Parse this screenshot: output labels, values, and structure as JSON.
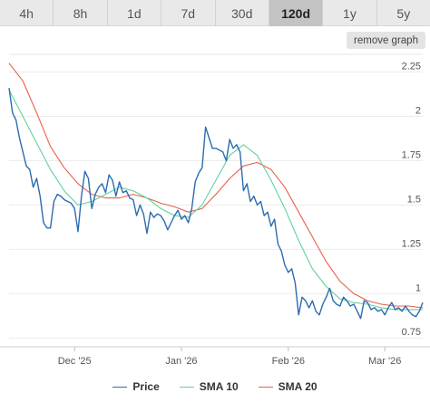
{
  "tabs": [
    {
      "label": "4h",
      "active": false
    },
    {
      "label": "8h",
      "active": false
    },
    {
      "label": "1d",
      "active": false
    },
    {
      "label": "7d",
      "active": false
    },
    {
      "label": "30d",
      "active": false
    },
    {
      "label": "120d",
      "active": true
    },
    {
      "label": "1y",
      "active": false
    },
    {
      "label": "5y",
      "active": false
    }
  ],
  "remove_graph_label": "remove graph",
  "chart_data": {
    "type": "line",
    "title": "",
    "xlabel": "",
    "ylabel": "",
    "ylim": [
      0.7,
      2.35
    ],
    "y_ticks": [
      0.75,
      1,
      1.25,
      1.5,
      1.75,
      2,
      2.25
    ],
    "y_tick_labels": [
      "0.75",
      "1",
      "1.25",
      "1.5",
      "1.75",
      "2",
      "2.25"
    ],
    "x_range": [
      "2025-11-12",
      "2026-03-12"
    ],
    "x_ticks": [
      {
        "date": "2025-12-01",
        "label": "Dec '25"
      },
      {
        "date": "2026-01-01",
        "label": "Jan '26"
      },
      {
        "date": "2026-02-01",
        "label": "Feb '26"
      },
      {
        "date": "2026-03-01",
        "label": "Mar '26"
      }
    ],
    "grid": {
      "horizontal": true,
      "vertical": false
    },
    "legend_position": "bottom",
    "series": [
      {
        "name": "Price",
        "color": "#2b6cb0",
        "points": [
          [
            "2025-11-12",
            2.16
          ],
          [
            "2025-11-13",
            2.02
          ],
          [
            "2025-11-14",
            1.98
          ],
          [
            "2025-11-15",
            1.88
          ],
          [
            "2025-11-16",
            1.8
          ],
          [
            "2025-11-17",
            1.72
          ],
          [
            "2025-11-18",
            1.7
          ],
          [
            "2025-11-19",
            1.6
          ],
          [
            "2025-11-20",
            1.65
          ],
          [
            "2025-11-21",
            1.55
          ],
          [
            "2025-11-22",
            1.4
          ],
          [
            "2025-11-23",
            1.37
          ],
          [
            "2025-11-24",
            1.37
          ],
          [
            "2025-11-25",
            1.52
          ],
          [
            "2025-11-26",
            1.56
          ],
          [
            "2025-11-27",
            1.55
          ],
          [
            "2025-11-28",
            1.53
          ],
          [
            "2025-11-29",
            1.52
          ],
          [
            "2025-11-30",
            1.51
          ],
          [
            "2025-12-01",
            1.48
          ],
          [
            "2025-12-02",
            1.35
          ],
          [
            "2025-12-03",
            1.55
          ],
          [
            "2025-12-04",
            1.69
          ],
          [
            "2025-12-05",
            1.65
          ],
          [
            "2025-12-06",
            1.48
          ],
          [
            "2025-12-07",
            1.56
          ],
          [
            "2025-12-08",
            1.6
          ],
          [
            "2025-12-09",
            1.62
          ],
          [
            "2025-12-10",
            1.57
          ],
          [
            "2025-12-11",
            1.67
          ],
          [
            "2025-12-12",
            1.64
          ],
          [
            "2025-12-13",
            1.55
          ],
          [
            "2025-12-14",
            1.63
          ],
          [
            "2025-12-15",
            1.57
          ],
          [
            "2025-12-16",
            1.58
          ],
          [
            "2025-12-17",
            1.54
          ],
          [
            "2025-12-18",
            1.53
          ],
          [
            "2025-12-19",
            1.44
          ],
          [
            "2025-12-20",
            1.5
          ],
          [
            "2025-12-21",
            1.45
          ],
          [
            "2025-12-22",
            1.34
          ],
          [
            "2025-12-23",
            1.46
          ],
          [
            "2025-12-24",
            1.43
          ],
          [
            "2025-12-25",
            1.45
          ],
          [
            "2025-12-26",
            1.44
          ],
          [
            "2025-12-27",
            1.41
          ],
          [
            "2025-12-28",
            1.36
          ],
          [
            "2025-12-29",
            1.4
          ],
          [
            "2025-12-30",
            1.44
          ],
          [
            "2025-12-31",
            1.47
          ],
          [
            "2026-01-01",
            1.42
          ],
          [
            "2026-01-02",
            1.44
          ],
          [
            "2026-01-03",
            1.4
          ],
          [
            "2026-01-04",
            1.48
          ],
          [
            "2026-01-05",
            1.63
          ],
          [
            "2026-01-06",
            1.68
          ],
          [
            "2026-01-07",
            1.71
          ],
          [
            "2026-01-08",
            1.94
          ],
          [
            "2026-01-09",
            1.88
          ],
          [
            "2026-01-10",
            1.82
          ],
          [
            "2026-01-11",
            1.82
          ],
          [
            "2026-01-12",
            1.81
          ],
          [
            "2026-01-13",
            1.8
          ],
          [
            "2026-01-14",
            1.75
          ],
          [
            "2026-01-15",
            1.87
          ],
          [
            "2026-01-16",
            1.82
          ],
          [
            "2026-01-17",
            1.84
          ],
          [
            "2026-01-18",
            1.8
          ],
          [
            "2026-01-19",
            1.58
          ],
          [
            "2026-01-20",
            1.62
          ],
          [
            "2026-01-21",
            1.52
          ],
          [
            "2026-01-22",
            1.55
          ],
          [
            "2026-01-23",
            1.5
          ],
          [
            "2026-01-24",
            1.52
          ],
          [
            "2026-01-25",
            1.44
          ],
          [
            "2026-01-26",
            1.46
          ],
          [
            "2026-01-27",
            1.38
          ],
          [
            "2026-01-28",
            1.42
          ],
          [
            "2026-01-29",
            1.28
          ],
          [
            "2026-01-30",
            1.24
          ],
          [
            "2026-01-31",
            1.16
          ],
          [
            "2026-02-01",
            1.12
          ],
          [
            "2026-02-02",
            1.14
          ],
          [
            "2026-02-03",
            1.06
          ],
          [
            "2026-02-04",
            0.88
          ],
          [
            "2026-02-05",
            0.98
          ],
          [
            "2026-02-06",
            0.96
          ],
          [
            "2026-02-07",
            0.92
          ],
          [
            "2026-02-08",
            0.96
          ],
          [
            "2026-02-09",
            0.9
          ],
          [
            "2026-02-10",
            0.88
          ],
          [
            "2026-02-11",
            0.94
          ],
          [
            "2026-02-12",
            0.98
          ],
          [
            "2026-02-13",
            1.03
          ],
          [
            "2026-02-14",
            0.96
          ],
          [
            "2026-02-15",
            0.94
          ],
          [
            "2026-02-16",
            0.93
          ],
          [
            "2026-02-17",
            0.98
          ],
          [
            "2026-02-18",
            0.96
          ],
          [
            "2026-02-19",
            0.93
          ],
          [
            "2026-02-20",
            0.94
          ],
          [
            "2026-02-21",
            0.9
          ],
          [
            "2026-02-22",
            0.86
          ],
          [
            "2026-02-23",
            0.96
          ],
          [
            "2026-02-24",
            0.95
          ],
          [
            "2026-02-25",
            0.91
          ],
          [
            "2026-02-26",
            0.92
          ],
          [
            "2026-02-27",
            0.9
          ],
          [
            "2026-02-28",
            0.91
          ],
          [
            "2026-03-01",
            0.88
          ],
          [
            "2026-03-02",
            0.92
          ],
          [
            "2026-03-03",
            0.95
          ],
          [
            "2026-03-04",
            0.91
          ],
          [
            "2026-03-05",
            0.92
          ],
          [
            "2026-03-06",
            0.9
          ],
          [
            "2026-03-07",
            0.93
          ],
          [
            "2026-03-08",
            0.9
          ],
          [
            "2026-03-09",
            0.88
          ],
          [
            "2026-03-10",
            0.87
          ],
          [
            "2026-03-11",
            0.9
          ],
          [
            "2026-03-12",
            0.95
          ]
        ]
      },
      {
        "name": "SMA 10",
        "color": "#5fd39a",
        "points": [
          [
            "2025-11-12",
            2.15
          ],
          [
            "2025-11-16",
            2.0
          ],
          [
            "2025-11-20",
            1.85
          ],
          [
            "2025-11-24",
            1.7
          ],
          [
            "2025-11-28",
            1.58
          ],
          [
            "2025-12-02",
            1.5
          ],
          [
            "2025-12-06",
            1.52
          ],
          [
            "2025-12-10",
            1.56
          ],
          [
            "2025-12-14",
            1.6
          ],
          [
            "2025-12-18",
            1.58
          ],
          [
            "2025-12-22",
            1.54
          ],
          [
            "2025-12-26",
            1.48
          ],
          [
            "2025-12-30",
            1.44
          ],
          [
            "2026-01-03",
            1.43
          ],
          [
            "2026-01-07",
            1.5
          ],
          [
            "2026-01-11",
            1.64
          ],
          [
            "2026-01-15",
            1.78
          ],
          [
            "2026-01-19",
            1.84
          ],
          [
            "2026-01-23",
            1.78
          ],
          [
            "2026-01-27",
            1.64
          ],
          [
            "2026-01-31",
            1.48
          ],
          [
            "2026-02-04",
            1.3
          ],
          [
            "2026-02-08",
            1.14
          ],
          [
            "2026-02-12",
            1.04
          ],
          [
            "2026-02-16",
            0.97
          ],
          [
            "2026-02-20",
            0.95
          ],
          [
            "2026-02-24",
            0.94
          ],
          [
            "2026-02-28",
            0.92
          ],
          [
            "2026-03-04",
            0.91
          ],
          [
            "2026-03-08",
            0.91
          ],
          [
            "2026-03-12",
            0.91
          ]
        ]
      },
      {
        "name": "SMA 20",
        "color": "#e8604c",
        "points": [
          [
            "2025-11-12",
            2.3
          ],
          [
            "2025-11-16",
            2.2
          ],
          [
            "2025-11-20",
            2.02
          ],
          [
            "2025-11-24",
            1.83
          ],
          [
            "2025-11-28",
            1.71
          ],
          [
            "2025-12-02",
            1.62
          ],
          [
            "2025-12-06",
            1.56
          ],
          [
            "2025-12-10",
            1.54
          ],
          [
            "2025-12-14",
            1.54
          ],
          [
            "2025-12-18",
            1.56
          ],
          [
            "2025-12-22",
            1.54
          ],
          [
            "2025-12-26",
            1.51
          ],
          [
            "2025-12-30",
            1.49
          ],
          [
            "2026-01-03",
            1.46
          ],
          [
            "2026-01-07",
            1.48
          ],
          [
            "2026-01-11",
            1.56
          ],
          [
            "2026-01-15",
            1.65
          ],
          [
            "2026-01-19",
            1.72
          ],
          [
            "2026-01-23",
            1.74
          ],
          [
            "2026-01-27",
            1.7
          ],
          [
            "2026-01-31",
            1.6
          ],
          [
            "2026-02-04",
            1.46
          ],
          [
            "2026-02-08",
            1.32
          ],
          [
            "2026-02-12",
            1.18
          ],
          [
            "2026-02-16",
            1.07
          ],
          [
            "2026-02-20",
            1.0
          ],
          [
            "2026-02-24",
            0.96
          ],
          [
            "2026-02-28",
            0.94
          ],
          [
            "2026-03-04",
            0.93
          ],
          [
            "2026-03-08",
            0.93
          ],
          [
            "2026-03-12",
            0.92
          ]
        ]
      }
    ]
  }
}
